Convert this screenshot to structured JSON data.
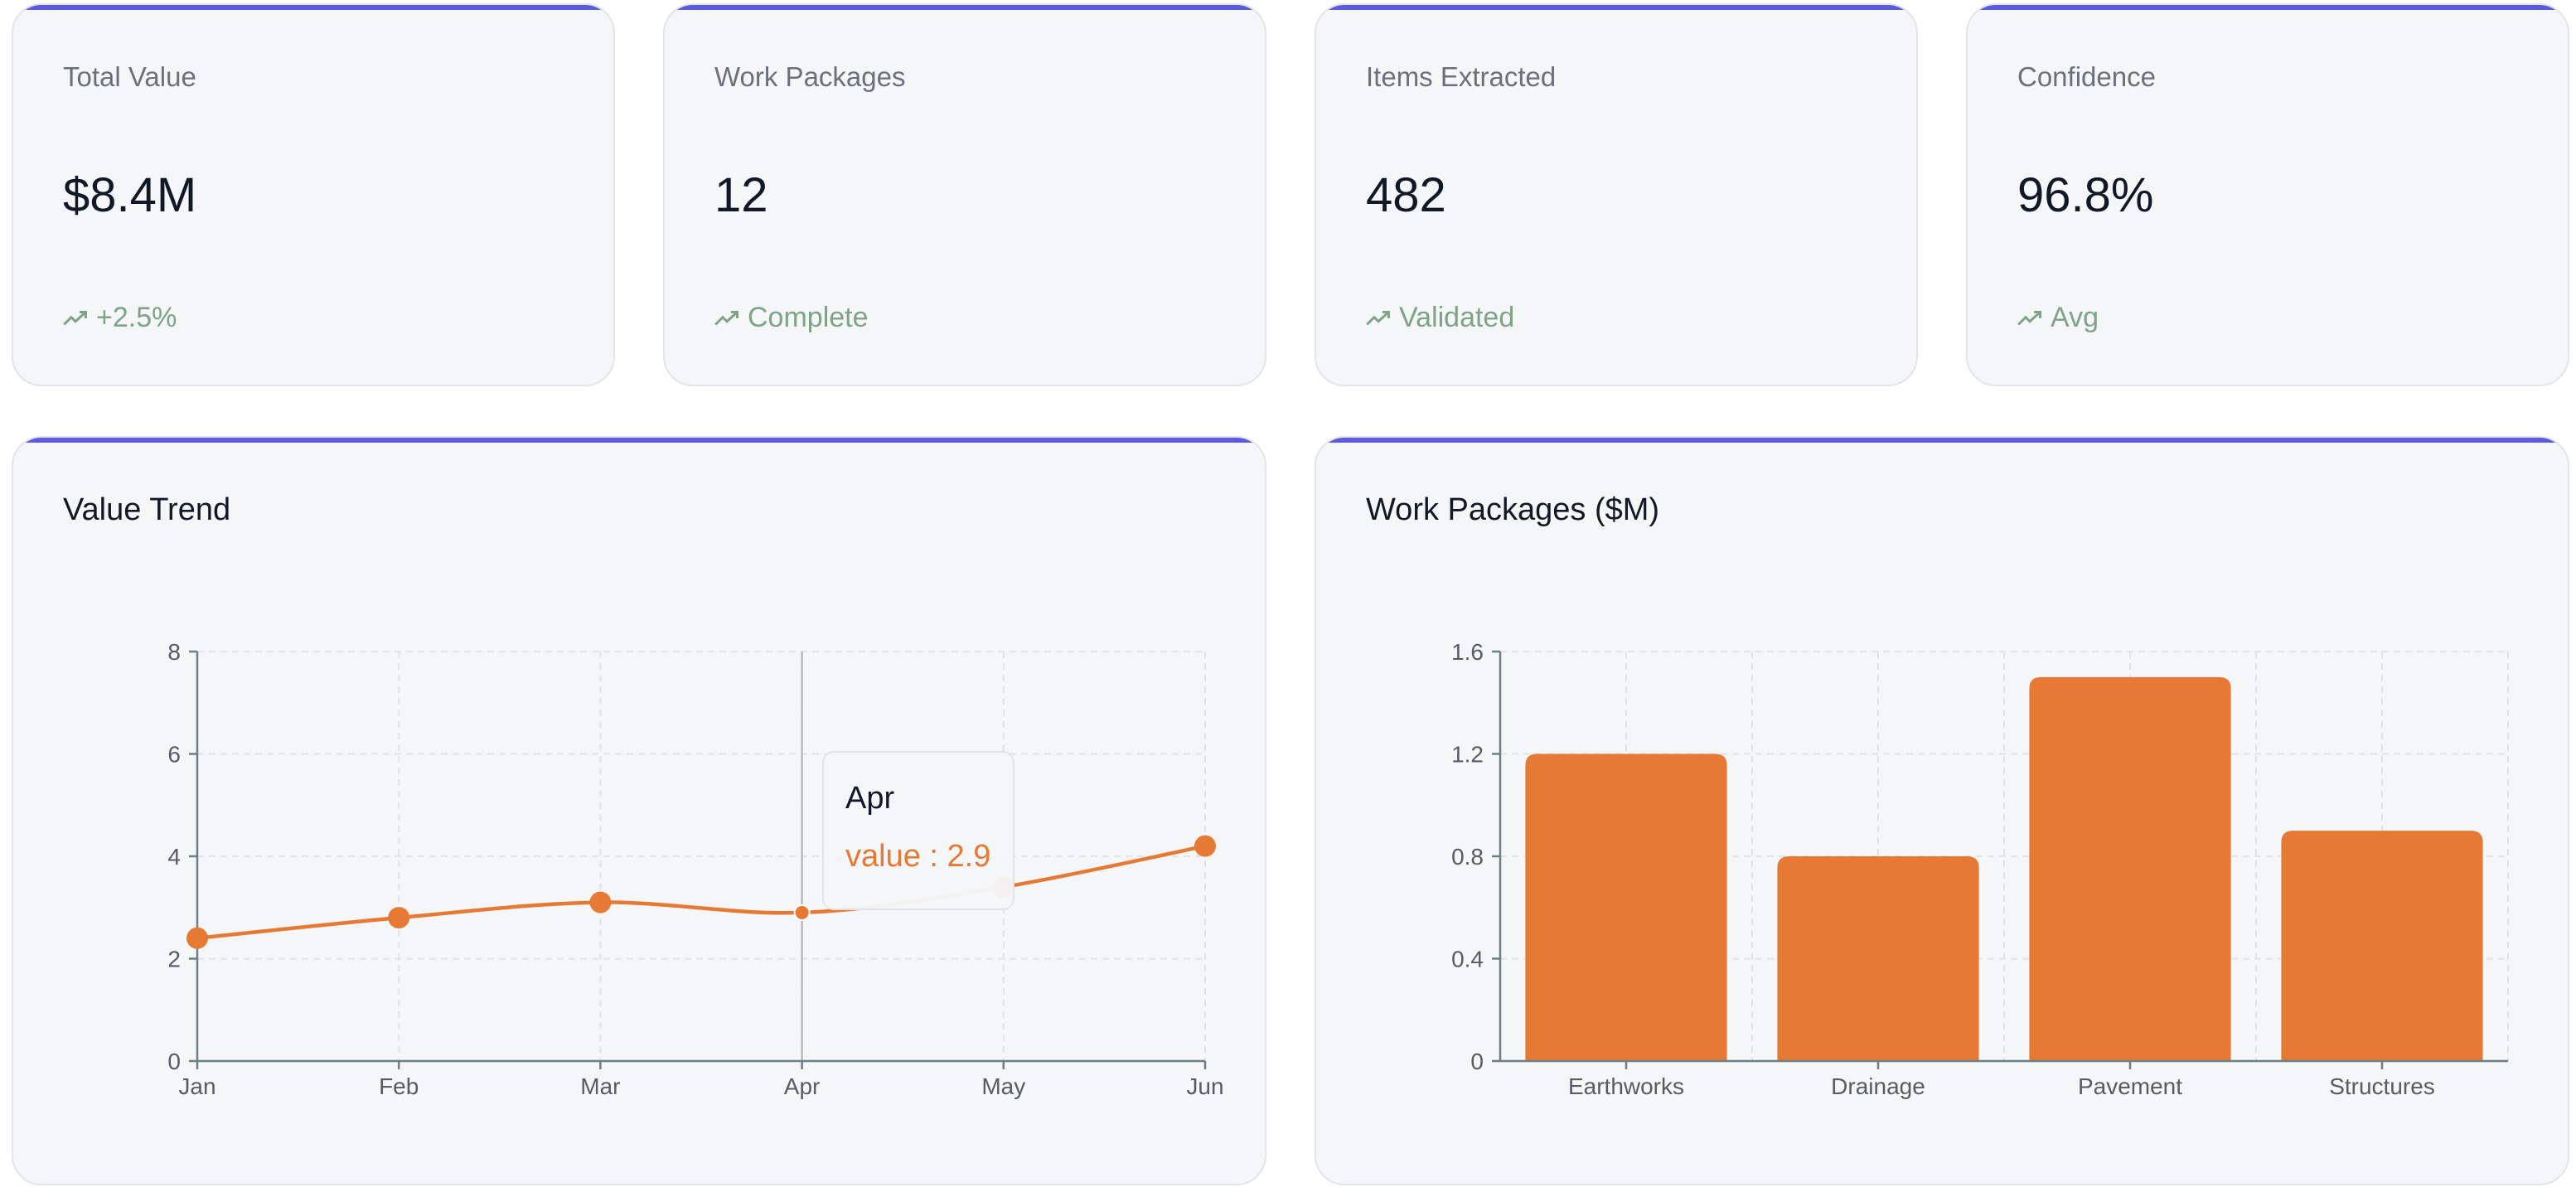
{
  "stats": [
    {
      "label": "Total Value",
      "value": "$8.4M",
      "trend": "+2.5%"
    },
    {
      "label": "Work Packages",
      "value": "12",
      "trend": "Complete"
    },
    {
      "label": "Items Extracted",
      "value": "482",
      "trend": "Validated"
    },
    {
      "label": "Confidence",
      "value": "96.8%",
      "trend": "Avg"
    }
  ],
  "colors": {
    "accent": "#5b5bdc",
    "series": "#e67a35",
    "trend": "#7fa387"
  },
  "icons": {
    "trend": "trending-up-icon"
  },
  "value_trend": {
    "title": "Value Trend",
    "tooltip": {
      "label": "Apr",
      "value_text": "value : 2.9"
    }
  },
  "work_packages": {
    "title": "Work Packages ($M)"
  },
  "chart_data": [
    {
      "type": "line",
      "title": "Value Trend",
      "x": [
        "Jan",
        "Feb",
        "Mar",
        "Apr",
        "May",
        "Jun"
      ],
      "series": [
        {
          "name": "value",
          "values": [
            2.4,
            2.8,
            3.1,
            2.9,
            3.4,
            4.2
          ]
        }
      ],
      "yticks": [
        0,
        2,
        4,
        6,
        8
      ],
      "ylim": [
        0,
        8
      ],
      "grid": true
    },
    {
      "type": "bar",
      "title": "Work Packages ($M)",
      "categories": [
        "Earthworks",
        "Drainage",
        "Pavement",
        "Structures"
      ],
      "values": [
        1.2,
        0.8,
        1.5,
        0.9
      ],
      "yticks": [
        0,
        0.4,
        0.8,
        1.2,
        1.6
      ],
      "ylim": [
        0,
        1.6
      ],
      "grid": true
    }
  ]
}
